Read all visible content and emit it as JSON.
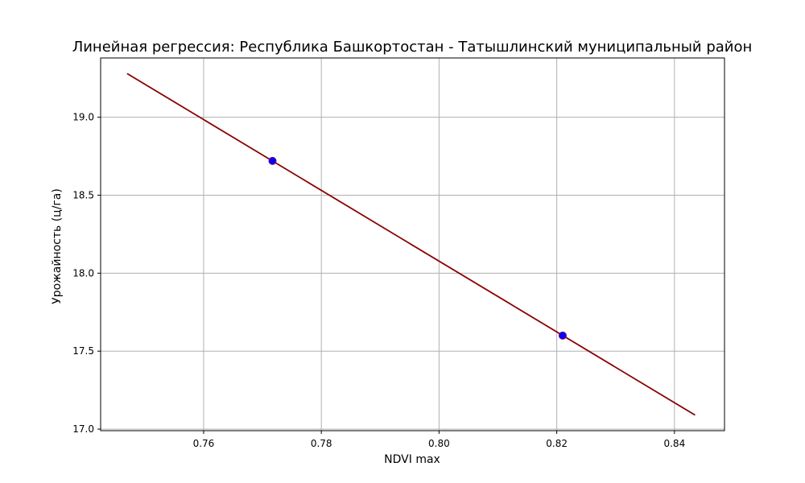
{
  "chart_data": {
    "type": "scatter",
    "title": "Линейная регрессия: Республика Башкортостан - Татышлинский муниципальный район",
    "xlabel": "NDVI max",
    "ylabel": "Урожайность (ц/га)",
    "xlim": [
      0.7425,
      0.8485
    ],
    "ylim": [
      16.99,
      19.38
    ],
    "xticks": [
      0.76,
      0.78,
      0.8,
      0.82,
      0.84
    ],
    "xtick_labels": [
      "0.76",
      "0.78",
      "0.80",
      "0.82",
      "0.84"
    ],
    "yticks": [
      17.0,
      17.5,
      18.0,
      18.5,
      19.0
    ],
    "ytick_labels": [
      "17.0",
      "17.5",
      "18.0",
      "18.5",
      "19.0"
    ],
    "grid": true,
    "series": [
      {
        "kind": "scatter",
        "color": "#0000ff",
        "edge_color": "#800080",
        "points": [
          {
            "x": 0.7717,
            "y": 18.72
          },
          {
            "x": 0.821,
            "y": 17.6
          }
        ]
      },
      {
        "kind": "line",
        "color": "#8b0000",
        "points": [
          {
            "x": 0.747,
            "y": 19.28
          },
          {
            "x": 0.8435,
            "y": 17.09
          }
        ]
      }
    ]
  }
}
